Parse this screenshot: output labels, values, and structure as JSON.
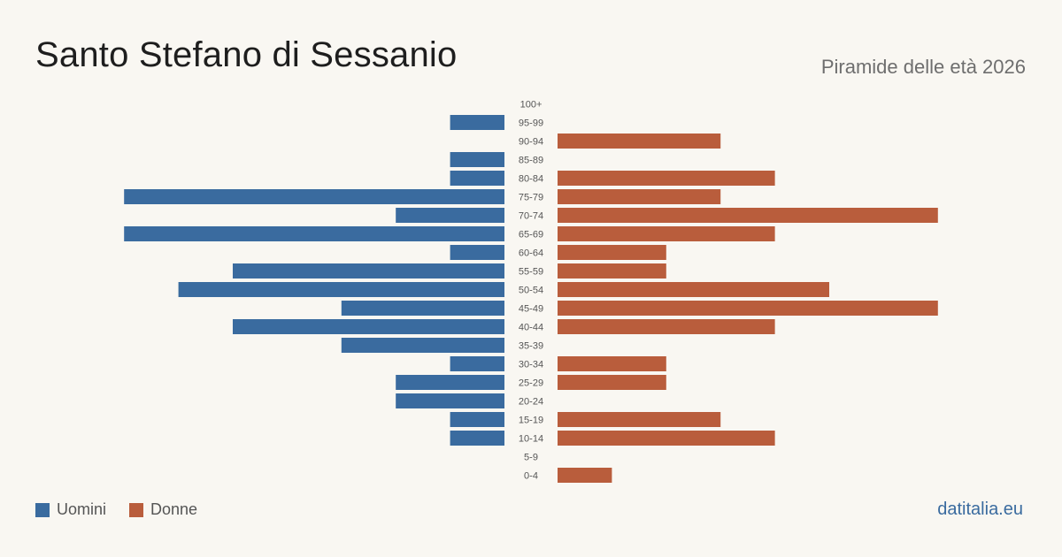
{
  "header": {
    "title": "Santo Stefano di Sessanio",
    "subtitle": "Piramide delle età 2026"
  },
  "legend": {
    "male_label": "Uomini",
    "female_label": "Donne"
  },
  "brand": "datitalia.eu",
  "colors": {
    "male": "#3a6b9f",
    "female": "#b95d3c",
    "background": "#f9f7f2"
  },
  "chart_data": {
    "type": "bar",
    "orientation": "horizontal-pyramid",
    "categories": [
      "100+",
      "95-99",
      "90-94",
      "85-89",
      "80-84",
      "75-79",
      "70-74",
      "65-69",
      "60-64",
      "55-59",
      "50-54",
      "45-49",
      "40-44",
      "35-39",
      "30-34",
      "25-29",
      "20-24",
      "15-19",
      "10-14",
      "5-9",
      "0-4"
    ],
    "series": [
      {
        "name": "Uomini",
        "values": [
          0,
          1,
          0,
          1,
          1,
          7,
          2,
          7,
          1,
          5,
          6,
          3,
          5,
          3,
          1,
          2,
          2,
          1,
          1,
          0,
          0
        ]
      },
      {
        "name": "Donne",
        "values": [
          0,
          0,
          3,
          0,
          4,
          3,
          7,
          4,
          2,
          2,
          5,
          7,
          4,
          0,
          2,
          2,
          0,
          3,
          4,
          0,
          1
        ]
      }
    ],
    "legend_position": "bottom-left",
    "grid": false
  }
}
